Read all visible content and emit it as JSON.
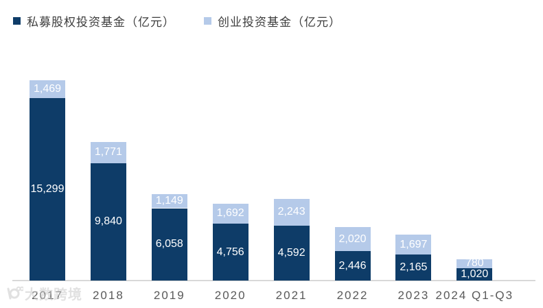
{
  "legend": {
    "items": [
      {
        "label": "私募股权投资基金（亿元）",
        "color": "#0e3c68"
      },
      {
        "label": "创业投资基金（亿元）",
        "color": "#b5cae9"
      }
    ]
  },
  "watermark": {
    "text": "大数跨境"
  },
  "chart_data": {
    "type": "bar",
    "stacked": true,
    "title": "",
    "xlabel": "",
    "ylabel": "",
    "grid": false,
    "legend_position": "top-left",
    "ylim": [
      0,
      16768
    ],
    "categories": [
      "2017",
      "2018",
      "2019",
      "2020",
      "2021",
      "2022",
      "2023",
      "2024 Q1-Q3"
    ],
    "series": [
      {
        "name": "私募股权投资基金（亿元）",
        "color": "#0e3c68",
        "values": [
          15299,
          9840,
          6058,
          4756,
          4592,
          2446,
          2165,
          1020
        ],
        "labels": [
          "15,299",
          "9,840",
          "6,058",
          "4,756",
          "4,592",
          "2,446",
          "2,165",
          "1,020"
        ]
      },
      {
        "name": "创业投资基金（亿元）",
        "color": "#b5cae9",
        "values": [
          1469,
          1771,
          1149,
          1692,
          2243,
          2020,
          1697,
          780
        ],
        "labels": [
          "1,469",
          "1,771",
          "1,149",
          "1,692",
          "2,243",
          "2,020",
          "1,697",
          "780"
        ]
      }
    ],
    "value_label_color": "#ffffff",
    "tick_label_color": "#595959",
    "axis_line_color": "#d8d8d8"
  }
}
